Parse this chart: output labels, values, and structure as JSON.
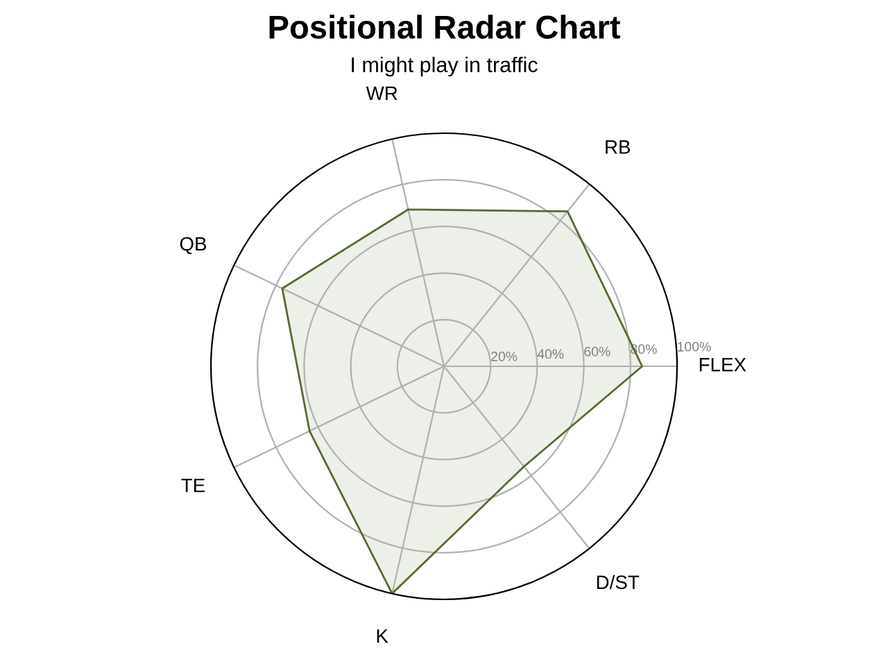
{
  "chart_data": {
    "type": "radar",
    "title": "Positional Radar Chart",
    "subtitle": "I might play in traffic",
    "categories": [
      "WR",
      "RB",
      "FLEX",
      "D/ST",
      "K",
      "TE",
      "QB"
    ],
    "series": [
      {
        "color": "#556b2f",
        "values": [
          69,
          85,
          85,
          55,
          100,
          64,
          77
        ]
      }
    ],
    "ylim": [
      0,
      100
    ],
    "yticks": [
      {
        "value": 20,
        "label": "20%"
      },
      {
        "value": 40,
        "label": "40%"
      },
      {
        "value": 60,
        "label": "60%"
      },
      {
        "value": 80,
        "label": "80%"
      },
      {
        "value": 100,
        "label": "100%"
      }
    ],
    "grid": true
  }
}
